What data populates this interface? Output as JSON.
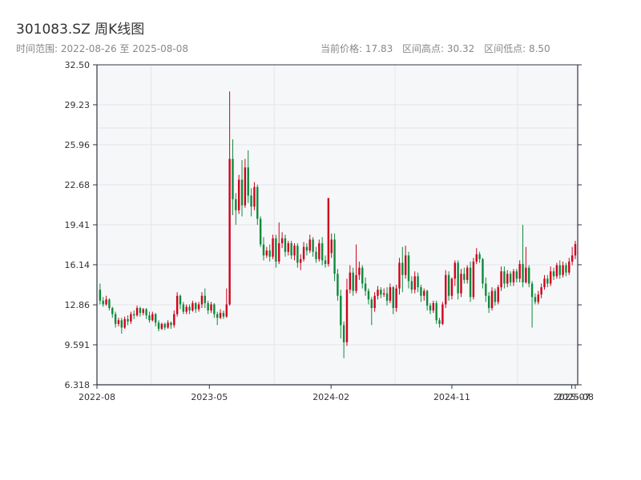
{
  "title": "301083.SZ 周K线图",
  "subtitle": "时间范围: 2022-08-26 至 2025-08-08",
  "stats": {
    "current": "当前价格: 17.83",
    "high": "区间高点: 30.32",
    "low": "区间低点: 8.50"
  },
  "colors": {
    "up": "#d0021b",
    "down": "#0f8a3c",
    "plot_bg": "#f6f7f9",
    "grid": "#e3e6ea",
    "axis": "#2f3640"
  },
  "chart_data": {
    "type": "candlestick",
    "title": "301083.SZ 周K线图",
    "xlabel": "",
    "ylabel": "",
    "ylim": [
      6.318,
      32.5
    ],
    "yticks": [
      "32.50",
      "29.23",
      "25.96",
      "22.68",
      "19.41",
      "16.14",
      "12.86",
      "9.591",
      "6.318"
    ],
    "xlim": [
      "2022-08-19",
      "2025-08-08"
    ],
    "xticks": [
      {
        "date": "2022-08-01",
        "label": "2022-08"
      },
      {
        "date": "2023-05-01",
        "label": "2023-05"
      },
      {
        "date": "2024-02-01",
        "label": "2024-02"
      },
      {
        "date": "2024-11-01",
        "label": "2024-11"
      },
      {
        "date": "2025-07-31",
        "label": "2025-07"
      },
      {
        "date": "2025-08-08",
        "label": "2025-08"
      }
    ],
    "grid": true,
    "columns": [
      "date",
      "open",
      "close",
      "low",
      "high"
    ],
    "candles": [
      [
        "2022-08-26",
        14.1,
        13.2,
        12.9,
        14.6
      ],
      [
        "2022-09-02",
        13.2,
        12.9,
        12.7,
        13.5
      ],
      [
        "2022-09-09",
        12.9,
        13.3,
        12.8,
        13.6
      ],
      [
        "2022-09-16",
        13.3,
        12.6,
        12.4,
        13.4
      ],
      [
        "2022-09-23",
        12.6,
        12.1,
        11.8,
        12.7
      ],
      [
        "2022-09-30",
        12.1,
        11.3,
        11.0,
        12.3
      ],
      [
        "2022-10-07",
        11.3,
        11.6,
        11.1,
        11.8
      ],
      [
        "2022-10-14",
        11.6,
        11.0,
        10.5,
        11.8
      ],
      [
        "2022-10-21",
        11.0,
        11.7,
        10.9,
        11.9
      ],
      [
        "2022-10-28",
        11.7,
        11.5,
        11.2,
        12.0
      ],
      [
        "2022-11-04",
        11.5,
        12.1,
        11.3,
        12.3
      ],
      [
        "2022-11-11",
        12.1,
        12.0,
        11.7,
        12.4
      ],
      [
        "2022-11-18",
        12.0,
        12.6,
        11.9,
        12.8
      ],
      [
        "2022-11-25",
        12.6,
        12.2,
        11.9,
        12.7
      ],
      [
        "2022-12-02",
        12.2,
        12.5,
        12.0,
        12.6
      ],
      [
        "2022-12-09",
        12.5,
        12.0,
        11.7,
        12.6
      ],
      [
        "2022-12-16",
        12.0,
        11.6,
        11.4,
        12.3
      ],
      [
        "2022-12-23",
        11.6,
        12.1,
        11.5,
        12.3
      ],
      [
        "2022-12-30",
        12.1,
        11.4,
        11.1,
        12.2
      ],
      [
        "2023-01-06",
        11.4,
        10.9,
        10.7,
        11.6
      ],
      [
        "2023-01-13",
        10.9,
        11.3,
        10.8,
        11.4
      ],
      [
        "2023-01-20",
        11.3,
        11.0,
        10.8,
        11.4
      ],
      [
        "2023-01-27",
        11.0,
        11.4,
        10.9,
        11.6
      ],
      [
        "2023-02-03",
        11.4,
        11.2,
        10.9,
        11.5
      ],
      [
        "2023-02-10",
        11.2,
        12.1,
        11.0,
        12.4
      ],
      [
        "2023-02-17",
        12.1,
        13.6,
        11.9,
        13.9
      ],
      [
        "2023-02-24",
        13.6,
        12.9,
        12.5,
        13.7
      ],
      [
        "2023-03-03",
        12.9,
        12.3,
        12.1,
        13.1
      ],
      [
        "2023-03-10",
        12.3,
        12.7,
        12.1,
        12.9
      ],
      [
        "2023-03-17",
        12.7,
        12.4,
        12.1,
        12.9
      ],
      [
        "2023-03-24",
        12.4,
        13.0,
        12.3,
        13.2
      ],
      [
        "2023-03-31",
        13.0,
        12.5,
        12.2,
        13.1
      ],
      [
        "2023-04-07",
        12.5,
        12.9,
        12.3,
        13.1
      ],
      [
        "2023-04-14",
        12.9,
        13.6,
        12.6,
        13.9
      ],
      [
        "2023-04-21",
        13.6,
        13.0,
        12.6,
        14.2
      ],
      [
        "2023-04-28",
        13.0,
        12.4,
        12.1,
        13.2
      ],
      [
        "2023-05-05",
        12.4,
        12.9,
        12.2,
        13.1
      ],
      [
        "2023-05-12",
        12.9,
        12.1,
        11.8,
        13.0
      ],
      [
        "2023-05-19",
        12.1,
        11.8,
        11.2,
        12.3
      ],
      [
        "2023-05-26",
        11.8,
        12.2,
        11.7,
        12.5
      ],
      [
        "2023-06-02",
        12.2,
        11.9,
        11.7,
        12.4
      ],
      [
        "2023-06-09",
        11.9,
        12.9,
        11.8,
        14.2
      ],
      [
        "2023-06-16",
        12.9,
        24.8,
        12.8,
        30.32
      ],
      [
        "2023-06-23",
        24.8,
        21.5,
        20.2,
        26.4
      ],
      [
        "2023-06-30",
        21.5,
        20.6,
        19.4,
        22.0
      ],
      [
        "2023-07-07",
        20.6,
        23.1,
        20.3,
        23.5
      ],
      [
        "2023-07-14",
        23.1,
        21.0,
        20.1,
        24.7
      ],
      [
        "2023-07-21",
        21.0,
        24.1,
        20.8,
        24.8
      ],
      [
        "2023-07-28",
        24.1,
        21.8,
        21.2,
        25.5
      ],
      [
        "2023-08-04",
        21.8,
        20.9,
        20.1,
        22.4
      ],
      [
        "2023-08-11",
        20.9,
        22.5,
        20.6,
        22.9
      ],
      [
        "2023-08-18",
        22.5,
        19.9,
        19.4,
        22.7
      ],
      [
        "2023-08-25",
        19.9,
        17.8,
        17.6,
        20.1
      ],
      [
        "2023-09-01",
        17.8,
        16.9,
        16.5,
        18.4
      ],
      [
        "2023-09-08",
        16.9,
        17.3,
        16.7,
        17.6
      ],
      [
        "2023-09-15",
        17.3,
        16.8,
        16.4,
        17.8
      ],
      [
        "2023-09-22",
        16.8,
        18.3,
        16.6,
        18.6
      ],
      [
        "2023-09-29",
        18.3,
        16.4,
        15.9,
        18.6
      ],
      [
        "2023-10-06",
        16.4,
        17.9,
        16.2,
        19.6
      ],
      [
        "2023-10-13",
        17.9,
        18.3,
        17.5,
        18.8
      ],
      [
        "2023-10-20",
        18.3,
        17.2,
        16.8,
        18.6
      ],
      [
        "2023-10-27",
        17.2,
        17.9,
        16.9,
        18.1
      ],
      [
        "2023-11-03",
        17.9,
        16.9,
        16.6,
        18.1
      ],
      [
        "2023-11-10",
        16.9,
        17.7,
        16.5,
        17.9
      ],
      [
        "2023-11-17",
        17.7,
        16.3,
        15.9,
        17.9
      ],
      [
        "2023-11-24",
        16.3,
        16.6,
        15.7,
        17.0
      ],
      [
        "2023-12-01",
        16.6,
        17.6,
        16.4,
        18.0
      ],
      [
        "2023-12-08",
        17.6,
        17.3,
        16.9,
        17.9
      ],
      [
        "2023-12-15",
        17.3,
        18.2,
        17.1,
        18.6
      ],
      [
        "2023-12-22",
        18.2,
        17.2,
        16.8,
        18.4
      ],
      [
        "2023-12-29",
        17.2,
        16.6,
        16.3,
        17.6
      ],
      [
        "2024-01-05",
        16.6,
        17.9,
        16.4,
        18.2
      ],
      [
        "2024-01-12",
        17.9,
        16.5,
        16.1,
        18.4
      ],
      [
        "2024-01-19",
        16.5,
        16.2,
        15.9,
        16.9
      ],
      [
        "2024-01-26",
        16.2,
        21.6,
        16.0,
        21.6
      ],
      [
        "2024-02-02",
        17.1,
        18.2,
        16.7,
        18.7
      ],
      [
        "2024-02-09",
        18.2,
        15.4,
        14.8,
        18.7
      ],
      [
        "2024-02-16",
        15.4,
        13.6,
        13.2,
        15.8
      ],
      [
        "2024-02-23",
        13.6,
        11.2,
        10.1,
        14.1
      ],
      [
        "2024-03-01",
        11.2,
        9.8,
        8.5,
        11.5
      ],
      [
        "2024-03-08",
        9.8,
        14.1,
        9.5,
        15.0
      ],
      [
        "2024-03-15",
        14.1,
        15.5,
        13.8,
        16.1
      ],
      [
        "2024-03-22",
        15.5,
        14.0,
        13.6,
        15.9
      ],
      [
        "2024-03-29",
        14.0,
        15.3,
        13.8,
        17.8
      ],
      [
        "2024-04-05",
        15.3,
        15.9,
        14.9,
        16.4
      ],
      [
        "2024-04-12",
        15.9,
        14.6,
        14.2,
        16.1
      ],
      [
        "2024-04-19",
        14.6,
        14.0,
        13.6,
        15.1
      ],
      [
        "2024-04-26",
        14.0,
        13.3,
        12.9,
        14.2
      ],
      [
        "2024-05-03",
        13.3,
        12.6,
        11.2,
        13.5
      ],
      [
        "2024-05-10",
        12.6,
        13.6,
        12.3,
        13.9
      ],
      [
        "2024-05-17",
        13.6,
        14.1,
        13.3,
        14.4
      ],
      [
        "2024-05-24",
        14.1,
        13.7,
        13.4,
        14.3
      ],
      [
        "2024-05-31",
        13.7,
        13.8,
        13.5,
        14.2
      ],
      [
        "2024-06-07",
        13.8,
        13.2,
        12.8,
        14.3
      ],
      [
        "2024-06-14",
        13.2,
        14.3,
        13.0,
        14.6
      ],
      [
        "2024-06-21",
        14.3,
        12.6,
        12.1,
        14.4
      ],
      [
        "2024-06-28",
        12.6,
        14.2,
        12.3,
        14.5
      ],
      [
        "2024-07-05",
        14.2,
        16.3,
        13.7,
        16.7
      ],
      [
        "2024-07-12",
        16.3,
        15.3,
        13.9,
        17.6
      ],
      [
        "2024-07-19",
        15.3,
        16.9,
        15.0,
        17.7
      ],
      [
        "2024-07-26",
        16.9,
        14.8,
        14.2,
        17.2
      ],
      [
        "2024-08-02",
        14.8,
        14.1,
        13.8,
        15.2
      ],
      [
        "2024-08-09",
        14.1,
        15.2,
        13.8,
        15.6
      ],
      [
        "2024-08-16",
        15.2,
        14.3,
        13.9,
        15.5
      ],
      [
        "2024-08-23",
        14.3,
        13.6,
        13.1,
        14.5
      ],
      [
        "2024-08-30",
        13.6,
        14.0,
        13.2,
        14.2
      ],
      [
        "2024-09-06",
        14.0,
        12.8,
        12.4,
        14.1
      ],
      [
        "2024-09-13",
        12.8,
        12.4,
        12.1,
        13.0
      ],
      [
        "2024-09-20",
        12.4,
        13.0,
        12.2,
        13.2
      ],
      [
        "2024-09-27",
        13.0,
        11.6,
        11.3,
        13.2
      ],
      [
        "2024-10-04",
        11.6,
        11.3,
        11.0,
        11.8
      ],
      [
        "2024-10-11",
        11.3,
        12.9,
        11.2,
        13.1
      ],
      [
        "2024-10-18",
        12.9,
        15.3,
        12.6,
        15.7
      ],
      [
        "2024-10-25",
        15.3,
        13.6,
        13.2,
        15.6
      ],
      [
        "2024-11-01",
        13.6,
        15.0,
        13.3,
        15.1
      ],
      [
        "2024-11-08",
        15.0,
        16.3,
        14.4,
        16.5
      ],
      [
        "2024-11-15",
        16.3,
        13.8,
        13.3,
        16.5
      ],
      [
        "2024-11-22",
        13.8,
        15.4,
        13.5,
        15.8
      ],
      [
        "2024-11-29",
        15.4,
        14.9,
        14.6,
        15.9
      ],
      [
        "2024-12-06",
        14.9,
        15.9,
        14.6,
        16.1
      ],
      [
        "2024-12-13",
        15.9,
        13.5,
        13.1,
        16.4
      ],
      [
        "2024-12-20",
        13.5,
        16.4,
        13.3,
        16.7
      ],
      [
        "2024-12-27",
        16.4,
        17.0,
        16.2,
        17.5
      ],
      [
        "2025-01-03",
        17.0,
        16.6,
        16.3,
        17.2
      ],
      [
        "2025-01-10",
        16.6,
        14.6,
        14.2,
        16.7
      ],
      [
        "2025-01-17",
        14.6,
        13.6,
        13.1,
        15.1
      ],
      [
        "2025-01-24",
        13.6,
        12.6,
        12.2,
        13.9
      ],
      [
        "2025-01-31",
        12.6,
        14.0,
        12.4,
        14.3
      ],
      [
        "2025-02-07",
        14.0,
        13.1,
        12.8,
        14.2
      ],
      [
        "2025-02-14",
        13.1,
        14.3,
        12.9,
        14.5
      ],
      [
        "2025-02-21",
        14.3,
        15.6,
        14.0,
        16.0
      ],
      [
        "2025-02-28",
        15.6,
        14.6,
        14.2,
        16.0
      ],
      [
        "2025-03-07",
        14.6,
        15.4,
        14.3,
        15.7
      ],
      [
        "2025-03-14",
        15.4,
        14.7,
        14.4,
        15.6
      ],
      [
        "2025-03-21",
        14.7,
        15.6,
        14.4,
        15.8
      ],
      [
        "2025-03-28",
        15.6,
        15.0,
        14.7,
        15.8
      ],
      [
        "2025-04-04",
        15.0,
        16.2,
        14.7,
        16.5
      ],
      [
        "2025-04-11",
        16.2,
        14.7,
        14.3,
        19.4
      ],
      [
        "2025-04-18",
        14.7,
        15.9,
        14.6,
        17.6
      ],
      [
        "2025-04-25",
        15.9,
        14.6,
        14.3,
        16.1
      ],
      [
        "2025-05-02",
        14.6,
        13.5,
        11.0,
        14.8
      ],
      [
        "2025-05-09",
        13.5,
        13.1,
        12.9,
        13.8
      ],
      [
        "2025-05-16",
        13.1,
        13.7,
        12.9,
        14.0
      ],
      [
        "2025-05-23",
        13.7,
        14.3,
        13.4,
        14.6
      ],
      [
        "2025-05-30",
        14.3,
        15.0,
        14.1,
        15.3
      ],
      [
        "2025-06-06",
        15.0,
        14.6,
        14.3,
        15.3
      ],
      [
        "2025-06-13",
        14.6,
        15.6,
        14.4,
        16.0
      ],
      [
        "2025-06-20",
        15.6,
        15.2,
        14.9,
        15.9
      ],
      [
        "2025-06-27",
        15.2,
        16.1,
        15.0,
        16.3
      ],
      [
        "2025-07-04",
        16.1,
        15.3,
        15.0,
        16.5
      ],
      [
        "2025-07-11",
        15.3,
        16.1,
        15.1,
        16.4
      ],
      [
        "2025-07-18",
        16.1,
        15.5,
        15.2,
        16.3
      ],
      [
        "2025-07-25",
        15.5,
        16.4,
        15.3,
        16.7
      ],
      [
        "2025-08-01",
        16.4,
        16.9,
        16.1,
        17.6
      ],
      [
        "2025-08-08",
        16.9,
        17.83,
        16.6,
        18.1
      ]
    ]
  }
}
